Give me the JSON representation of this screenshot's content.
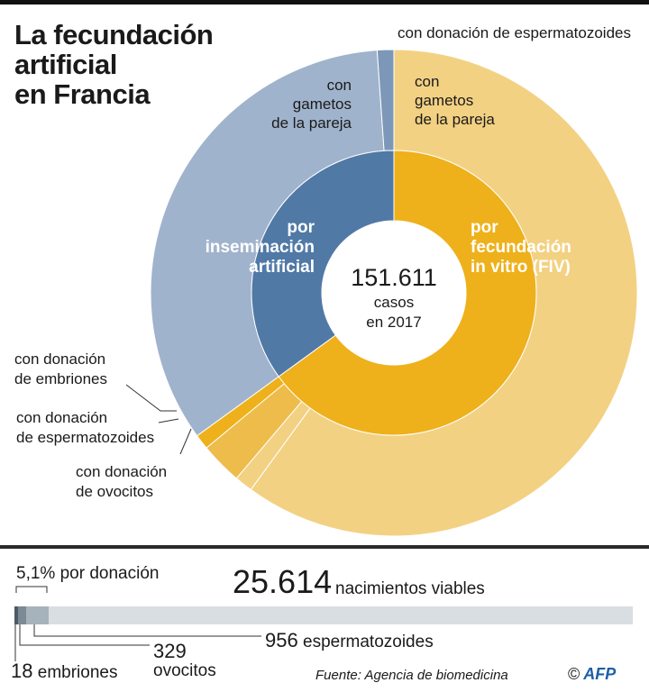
{
  "title": [
    "La fecundación",
    "artificial",
    "en Francia"
  ],
  "center": {
    "value": "151.611",
    "line1": "casos",
    "line2": "en 2017"
  },
  "chart_data": [
    {
      "type": "pie",
      "title": "La fecundación artificial en Francia",
      "total": 151611,
      "unit": "casos en 2017",
      "inner_ring": [
        {
          "label": "por inseminación artificial",
          "share": 0.35,
          "color": "#5079a6"
        },
        {
          "label": "por fecundación in vitro (FIV)",
          "share": 0.65,
          "color": "#eeb11b"
        }
      ],
      "outer_ring": [
        {
          "label": "con gametos de la pareja",
          "group": "inseminación",
          "share": 0.339,
          "color": "#a0b3cc"
        },
        {
          "label": "con donación de espermatozoides",
          "group": "inseminación",
          "share": 0.011,
          "color": "#7d97b8"
        },
        {
          "label": "con gametos de la pareja",
          "group": "FIV",
          "share": 0.6,
          "color": "#f3d183"
        },
        {
          "label": "con donación de ovocitos",
          "group": "FIV",
          "share": 0.028,
          "color": "#eebc4a"
        },
        {
          "label": "con donación de espermatozoides",
          "group": "FIV",
          "share": 0.012,
          "color": "#f3d183"
        },
        {
          "label": "con donación de embriones",
          "group": "FIV",
          "share": 0.01,
          "color": "#eeb11b"
        }
      ]
    },
    {
      "type": "bar",
      "title": "nacimientos viables",
      "total": 25614,
      "donation_share_pct": 5.1,
      "segments": [
        {
          "label": "embriones",
          "value": 18,
          "color": "#4d5b66"
        },
        {
          "label": "ovocitos",
          "value": 329,
          "color": "#7b8a95"
        },
        {
          "label": "espermatozoides",
          "value": 956,
          "color": "#a7b3bc"
        }
      ]
    }
  ],
  "labels": {
    "ia": [
      "por",
      "inseminación",
      "artificial"
    ],
    "fiv": [
      "por",
      "fecundación",
      "in vitro (FIV)"
    ],
    "ia_pareja": [
      "con",
      "gametos",
      "de la pareja"
    ],
    "fiv_pareja": [
      "con",
      "gametos",
      "de la pareja"
    ],
    "ia_esperma": "con donación de espermatozoides",
    "embriones": [
      "con donación",
      "de embriones"
    ],
    "fiv_esperma": [
      "con donación",
      "de espermatozoides"
    ],
    "ovocitos": [
      "con donación",
      "de ovocitos"
    ]
  },
  "births": {
    "number": "25.614",
    "text": "nacimientos viables",
    "pct_value": "5,1",
    "pct_text": "% por donación",
    "sperm_number": "956",
    "sperm_text": "espermatozoides",
    "ovo_number": "329",
    "ovo_text": "ovocitos",
    "emb_number": "18",
    "emb_text": "embriones"
  },
  "source": "Fuente: Agencia de biomedicina",
  "credit": {
    "symbol": "©",
    "brand": "AFP"
  }
}
